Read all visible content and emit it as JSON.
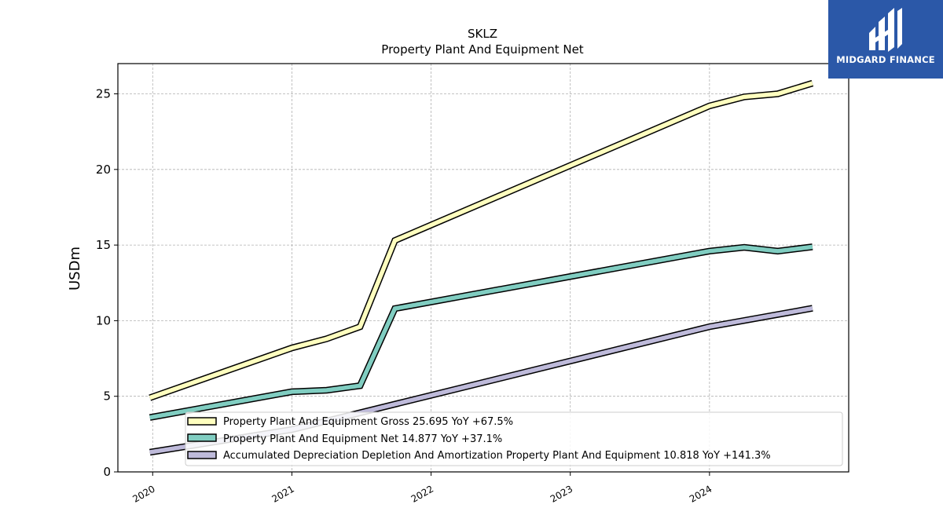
{
  "chart_data": {
    "type": "line",
    "title": "SKLZ",
    "subtitle": "Property Plant And Equipment Net",
    "ylabel": "USDm",
    "xlabel": "",
    "ylim": [
      0,
      27
    ],
    "xlim": [
      2019.75,
      2025.0
    ],
    "x_ticks": [
      {
        "value": 2020,
        "label": "2020"
      },
      {
        "value": 2021,
        "label": "2021"
      },
      {
        "value": 2022,
        "label": "2022"
      },
      {
        "value": 2023,
        "label": "2023"
      },
      {
        "value": 2024,
        "label": "2024"
      }
    ],
    "y_ticks": [
      0,
      5,
      10,
      15,
      20,
      25
    ],
    "grid": true,
    "legend_position": "bottom-right",
    "series": [
      {
        "name": "Property Plant And Equipment Gross",
        "legend_label": "Property Plant And Equipment Gross  25.695 YoY +67.5%",
        "color": "#ffffbf",
        "points": [
          [
            2019.98,
            4.9
          ],
          [
            2021.0,
            8.2
          ],
          [
            2021.25,
            8.8
          ],
          [
            2021.49,
            9.6
          ],
          [
            2021.74,
            15.3
          ],
          [
            2024.0,
            24.2
          ],
          [
            2024.25,
            24.8
          ],
          [
            2024.49,
            25.0
          ],
          [
            2024.74,
            25.7
          ]
        ]
      },
      {
        "name": "Property Plant And Equipment Net",
        "legend_label": "Property Plant And Equipment Net  14.877 YoY +37.1%",
        "color": "#80cdc1",
        "points": [
          [
            2019.98,
            3.6
          ],
          [
            2021.0,
            5.3
          ],
          [
            2021.25,
            5.4
          ],
          [
            2021.49,
            5.7
          ],
          [
            2021.74,
            10.8
          ],
          [
            2024.0,
            14.6
          ],
          [
            2024.25,
            14.85
          ],
          [
            2024.49,
            14.6
          ],
          [
            2024.74,
            14.88
          ]
        ]
      },
      {
        "name": "Accumulated Depreciation Depletion And Amortization Property Plant And Equipment",
        "legend_label": "Accumulated Depreciation Depletion And Amortization Property Plant And Equipment  10.818 YoY +141.3%",
        "color": "#bebada",
        "points": [
          [
            2019.98,
            1.3
          ],
          [
            2021.0,
            2.8
          ],
          [
            2024.0,
            9.6
          ],
          [
            2024.74,
            10.82
          ]
        ]
      }
    ]
  },
  "logo": {
    "text": "MIDGARD FINANCE",
    "background": "#2b58a8"
  }
}
